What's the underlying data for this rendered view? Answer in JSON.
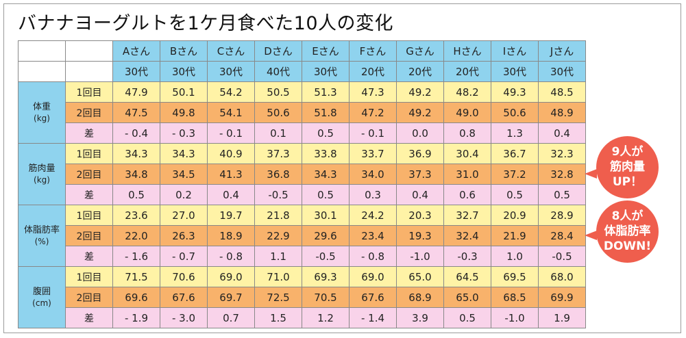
{
  "title": "バナナヨーグルトを1ケ月食べた10人の変化",
  "people": [
    {
      "name": "Aさん",
      "age": "30代"
    },
    {
      "name": "Bさん",
      "age": "30代"
    },
    {
      "name": "Cさん",
      "age": "30代"
    },
    {
      "name": "Dさん",
      "age": "40代"
    },
    {
      "name": "Eさん",
      "age": "30代"
    },
    {
      "name": "Fさん",
      "age": "20代"
    },
    {
      "name": "Gさん",
      "age": "20代"
    },
    {
      "name": "Hさん",
      "age": "20代"
    },
    {
      "name": "Iさん",
      "age": "30代"
    },
    {
      "name": "Jさん",
      "age": "30代"
    }
  ],
  "row_labels": {
    "first": "1回目",
    "second": "2回目",
    "diff": "差"
  },
  "groups": [
    {
      "name": "体重",
      "unit": "(kg)",
      "first": [
        "47.9",
        "50.1",
        "54.2",
        "50.5",
        "51.3",
        "47.3",
        "49.2",
        "48.2",
        "49.3",
        "48.5"
      ],
      "second": [
        "47.5",
        "49.8",
        "54.1",
        "50.6",
        "51.8",
        "47.2",
        "49.2",
        "49.0",
        "50.6",
        "48.9"
      ],
      "diff": [
        "- 0.4",
        "- 0.3",
        "- 0.1",
        "0.1",
        "0.5",
        "- 0.1",
        "0.0",
        "0.8",
        "1.3",
        "0.4"
      ]
    },
    {
      "name": "筋肉量",
      "unit": "(kg)",
      "first": [
        "34.3",
        "34.3",
        "40.9",
        "37.3",
        "33.8",
        "33.7",
        "36.9",
        "30.4",
        "36.7",
        "32.3"
      ],
      "second": [
        "34.8",
        "34.5",
        "41.3",
        "36.8",
        "34.3",
        "34.0",
        "37.3",
        "31.0",
        "37.2",
        "32.8"
      ],
      "diff": [
        "0.5",
        "0.2",
        "0.4",
        "-0.5",
        "0.5",
        "0.3",
        "0.4",
        "0.6",
        "0.5",
        "0.5"
      ]
    },
    {
      "name": "体脂肪率",
      "unit": "(%)",
      "first": [
        "23.6",
        "27.0",
        "19.7",
        "21.8",
        "30.1",
        "24.2",
        "20.3",
        "32.7",
        "20.9",
        "28.9"
      ],
      "second": [
        "22.0",
        "26.3",
        "18.9",
        "22.9",
        "29.6",
        "23.4",
        "19.3",
        "32.4",
        "21.9",
        "28.4"
      ],
      "diff": [
        "- 1.6",
        "- 0.7",
        "- 0.8",
        "1.1",
        "-0.5",
        "- 0.8",
        "-1.0",
        "-0.3",
        "1.0",
        "-0.5"
      ]
    },
    {
      "name": "腹囲",
      "unit": "(cm)",
      "first": [
        "71.5",
        "70.6",
        "69.0",
        "71.0",
        "69.3",
        "69.0",
        "65.0",
        "64.5",
        "69.5",
        "68.0"
      ],
      "second": [
        "69.6",
        "67.6",
        "69.7",
        "72.5",
        "70.5",
        "67.6",
        "68.9",
        "65.0",
        "68.5",
        "69.9"
      ],
      "diff": [
        "- 1.9",
        "- 3.0",
        "0.7",
        "1.5",
        "1.2",
        "- 1.4",
        "3.9",
        "0.5",
        "-1.0",
        "1.9"
      ]
    }
  ],
  "callouts": [
    {
      "lines": [
        "9人が",
        "筋肉量",
        "UP！"
      ]
    },
    {
      "lines": [
        "8人が",
        "体脂肪率",
        "DOWN!"
      ]
    }
  ],
  "colors": {
    "header_bg": "#8fd3ee",
    "first_row_bg": "#fff3a6",
    "second_row_bg": "#f8b26b",
    "diff_row_bg": "#f9d3ea",
    "callout_bg": "#ef5e4d"
  }
}
